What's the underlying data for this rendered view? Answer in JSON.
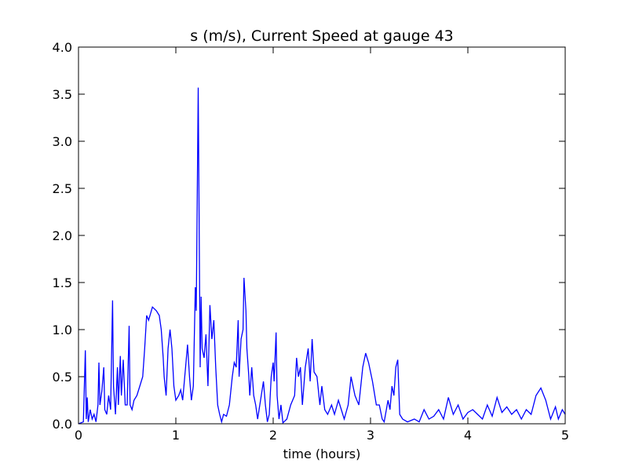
{
  "chart_data": {
    "type": "line",
    "title": "s (m/s), Current Speed at gauge 43",
    "xlabel": "time (hours)",
    "xlim": [
      0,
      5
    ],
    "xticks": [
      0,
      1,
      2,
      3,
      4,
      5
    ],
    "ylim": [
      0,
      4
    ],
    "yticks": [
      {
        "value": 0,
        "label": "0.0"
      },
      0.5,
      {
        "value": 1,
        "label": "1.0"
      },
      1.5,
      {
        "value": 2,
        "label": "2.0"
      },
      2.5,
      {
        "value": 3,
        "label": "3.0"
      },
      3.5,
      {
        "value": 4,
        "label": "4.0"
      }
    ],
    "series": [
      {
        "color": "#0000ff",
        "x": [
          0.0,
          0.05,
          0.07,
          0.08,
          0.09,
          0.1,
          0.12,
          0.14,
          0.16,
          0.18,
          0.2,
          0.21,
          0.22,
          0.24,
          0.26,
          0.27,
          0.29,
          0.31,
          0.33,
          0.35,
          0.36,
          0.38,
          0.4,
          0.41,
          0.43,
          0.44,
          0.46,
          0.48,
          0.5,
          0.52,
          0.53,
          0.55,
          0.57,
          0.6,
          0.63,
          0.66,
          0.68,
          0.7,
          0.72,
          0.76,
          0.8,
          0.83,
          0.85,
          0.87,
          0.88,
          0.9,
          0.92,
          0.94,
          0.96,
          0.98,
          1.0,
          1.03,
          1.05,
          1.07,
          1.1,
          1.12,
          1.14,
          1.16,
          1.18,
          1.2,
          1.21,
          1.23,
          1.24,
          1.25,
          1.26,
          1.27,
          1.29,
          1.31,
          1.33,
          1.35,
          1.37,
          1.39,
          1.41,
          1.43,
          1.45,
          1.47,
          1.49,
          1.52,
          1.55,
          1.58,
          1.6,
          1.62,
          1.64,
          1.65,
          1.67,
          1.69,
          1.7,
          1.72,
          1.73,
          1.75,
          1.76,
          1.78,
          1.8,
          1.82,
          1.84,
          1.87,
          1.9,
          1.92,
          1.94,
          1.96,
          1.98,
          2.0,
          2.01,
          2.03,
          2.04,
          2.06,
          2.08,
          2.1,
          2.14,
          2.18,
          2.22,
          2.24,
          2.26,
          2.28,
          2.3,
          2.33,
          2.36,
          2.38,
          2.4,
          2.42,
          2.45,
          2.48,
          2.5,
          2.53,
          2.56,
          2.6,
          2.63,
          2.67,
          2.7,
          2.73,
          2.77,
          2.8,
          2.84,
          2.88,
          2.92,
          2.95,
          2.98,
          3.02,
          3.06,
          3.09,
          3.12,
          3.14,
          3.18,
          3.2,
          3.22,
          3.24,
          3.26,
          3.28,
          3.3,
          3.33,
          3.38,
          3.45,
          3.5,
          3.55,
          3.6,
          3.65,
          3.7,
          3.75,
          3.8,
          3.85,
          3.9,
          3.95,
          4.0,
          4.05,
          4.1,
          4.15,
          4.2,
          4.25,
          4.3,
          4.35,
          4.4,
          4.45,
          4.5,
          4.55,
          4.6,
          4.65,
          4.7,
          4.75,
          4.8,
          4.85,
          4.9,
          4.93,
          4.97,
          5.0
        ],
        "values": [
          0,
          0.02,
          0.78,
          0.05,
          0.28,
          0.02,
          0.15,
          0.05,
          0.1,
          0.02,
          0.2,
          0.65,
          0.2,
          0.35,
          0.6,
          0.15,
          0.1,
          0.3,
          0.15,
          1.31,
          0.4,
          0.1,
          0.6,
          0.2,
          0.72,
          0.3,
          0.68,
          0.2,
          0.2,
          1.04,
          0.2,
          0.15,
          0.25,
          0.3,
          0.4,
          0.5,
          0.8,
          1.15,
          1.1,
          1.24,
          1.2,
          1.15,
          1.0,
          0.7,
          0.5,
          0.3,
          0.8,
          1.0,
          0.8,
          0.4,
          0.25,
          0.3,
          0.36,
          0.25,
          0.6,
          0.84,
          0.5,
          0.25,
          0.4,
          1.45,
          1.2,
          3.57,
          2.0,
          0.6,
          1.35,
          0.8,
          0.7,
          0.95,
          0.4,
          1.26,
          0.9,
          1.1,
          0.6,
          0.2,
          0.1,
          0.02,
          0.1,
          0.08,
          0.2,
          0.5,
          0.65,
          0.6,
          1.1,
          0.5,
          0.9,
          1.0,
          1.55,
          1.2,
          0.8,
          0.5,
          0.3,
          0.6,
          0.3,
          0.2,
          0.05,
          0.25,
          0.45,
          0.2,
          0.02,
          0.1,
          0.5,
          0.65,
          0.45,
          0.97,
          0.3,
          0.05,
          0.2,
          0.01,
          0.05,
          0.2,
          0.3,
          0.7,
          0.5,
          0.6,
          0.2,
          0.6,
          0.8,
          0.45,
          0.9,
          0.55,
          0.5,
          0.2,
          0.4,
          0.15,
          0.1,
          0.2,
          0.1,
          0.25,
          0.15,
          0.05,
          0.2,
          0.5,
          0.3,
          0.2,
          0.6,
          0.75,
          0.65,
          0.45,
          0.2,
          0.2,
          0.05,
          0.02,
          0.25,
          0.15,
          0.4,
          0.3,
          0.6,
          0.68,
          0.1,
          0.05,
          0.02,
          0.05,
          0.02,
          0.15,
          0.05,
          0.08,
          0.15,
          0.05,
          0.28,
          0.1,
          0.2,
          0.05,
          0.12,
          0.15,
          0.1,
          0.05,
          0.2,
          0.08,
          0.28,
          0.12,
          0.18,
          0.1,
          0.15,
          0.05,
          0.15,
          0.1,
          0.3,
          0.38,
          0.25,
          0.05,
          0.18,
          0.05,
          0.15,
          0.1
        ]
      }
    ]
  }
}
